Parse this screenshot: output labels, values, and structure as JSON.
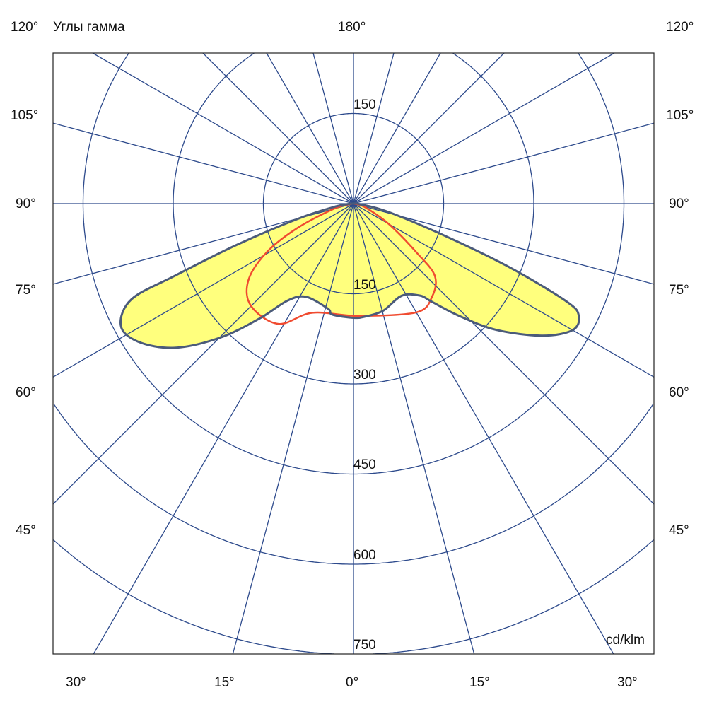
{
  "chart_data": {
    "type": "polar",
    "title": "Углы гамма",
    "unit": "cd/klm",
    "radial_ticks": [
      150,
      300,
      450,
      600,
      750
    ],
    "radial_max": 750,
    "angle_step": 15,
    "top_label": "180°",
    "side_labels": [
      "120°",
      "105°",
      "90°",
      "75°",
      "60°",
      "45°"
    ],
    "bottom_labels": [
      "30°",
      "15°",
      "0°",
      "15°",
      "30°"
    ],
    "inner_top_tick": "150",
    "grid": true,
    "colors": {
      "grid": "#2d4a8c",
      "fill": "#ffff7d",
      "outline": "#4b5b7a",
      "second": "#f04b30"
    },
    "series": [
      {
        "angles": [
          -90,
          -85,
          -80,
          -74.6,
          -70.5,
          -68,
          -66.7,
          -62.4,
          -57.4,
          -51.1,
          -44.8,
          -39.2,
          -34.2,
          -26.9,
          -13.6,
          -10.8,
          0,
          5.7,
          15.4,
          27.6,
          35.9,
          38.6,
          43.3,
          48.5,
          55,
          60,
          63.5,
          65.3,
          67.7,
          70.3,
          76.5,
          85,
          90
        ],
        "values": [
          0,
          10,
          35,
          98,
          208,
          321,
          402,
          437,
          426,
          382,
          314,
          246,
          195,
          174,
          180,
          188,
          190,
          189,
          185,
          173,
          189,
          209,
          257,
          317,
          383,
          421,
          419,
          391,
          285,
          171,
          60,
          10,
          0
        ]
      },
      {
        "angles": [
          -90,
          -80,
          -75,
          -66.4,
          -60.7,
          -53.8,
          -45,
          -32,
          -20.6,
          2.5,
          30,
          40,
          48.4,
          52.2,
          59.9,
          70,
          80,
          90
        ],
        "values": [
          0,
          8,
          35,
          103,
          166,
          217,
          241,
          236,
          194,
          187,
          209,
          203,
          181,
          133,
          68,
          25,
          8,
          0
        ]
      }
    ]
  }
}
